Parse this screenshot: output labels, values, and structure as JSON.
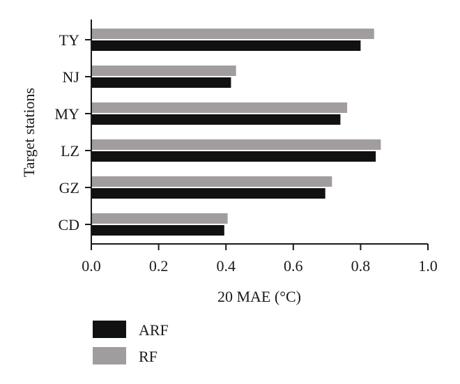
{
  "chart_data": {
    "type": "bar",
    "orientation": "horizontal",
    "title": "",
    "xlabel": "20 MAE (°C)",
    "ylabel": "Target stations",
    "xlim": [
      0,
      1.0
    ],
    "xticks": [
      "0.0",
      "0.2",
      "0.4",
      "0.6",
      "0.8",
      "1.0"
    ],
    "categories": [
      "TY",
      "NJ",
      "MY",
      "LZ",
      "GZ",
      "CD"
    ],
    "series": [
      {
        "name": "ARF",
        "color": "#111111",
        "values": [
          0.8,
          0.415,
          0.74,
          0.845,
          0.695,
          0.395
        ]
      },
      {
        "name": "RF",
        "color": "#a19d9e",
        "values": [
          0.84,
          0.43,
          0.76,
          0.86,
          0.715,
          0.405
        ]
      }
    ],
    "grid": false,
    "legend_position": "bottom-left"
  }
}
